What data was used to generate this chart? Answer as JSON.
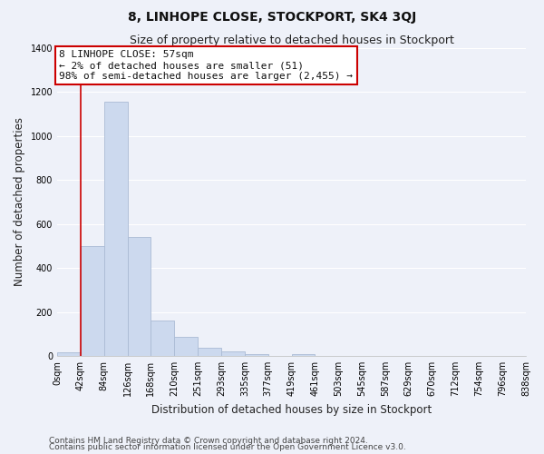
{
  "title": "8, LINHOPE CLOSE, STOCKPORT, SK4 3QJ",
  "subtitle": "Size of property relative to detached houses in Stockport",
  "xlabel": "Distribution of detached houses by size in Stockport",
  "ylabel": "Number of detached properties",
  "bar_color": "#ccd9ee",
  "bar_edge_color": "#aabbd4",
  "bin_labels": [
    "0sqm",
    "42sqm",
    "84sqm",
    "126sqm",
    "168sqm",
    "210sqm",
    "251sqm",
    "293sqm",
    "335sqm",
    "377sqm",
    "419sqm",
    "461sqm",
    "503sqm",
    "545sqm",
    "587sqm",
    "629sqm",
    "670sqm",
    "712sqm",
    "754sqm",
    "796sqm",
    "838sqm"
  ],
  "bar_heights": [
    15,
    500,
    1155,
    540,
    160,
    85,
    38,
    20,
    10,
    0,
    10,
    0,
    0,
    0,
    0,
    0,
    0,
    0,
    0,
    0
  ],
  "ylim": [
    0,
    1400
  ],
  "yticks": [
    0,
    200,
    400,
    600,
    800,
    1000,
    1200,
    1400
  ],
  "annotation_title": "8 LINHOPE CLOSE: 57sqm",
  "annotation_line1": "← 2% of detached houses are smaller (51)",
  "annotation_line2": "98% of semi-detached houses are larger (2,455) →",
  "footer_line1": "Contains HM Land Registry data © Crown copyright and database right 2024.",
  "footer_line2": "Contains public sector information licensed under the Open Government Licence v3.0.",
  "background_color": "#eef1f9",
  "grid_color": "#ffffff",
  "title_fontsize": 10,
  "subtitle_fontsize": 9,
  "axis_label_fontsize": 8.5,
  "tick_fontsize": 7,
  "annotation_fontsize": 8,
  "footer_fontsize": 6.5
}
